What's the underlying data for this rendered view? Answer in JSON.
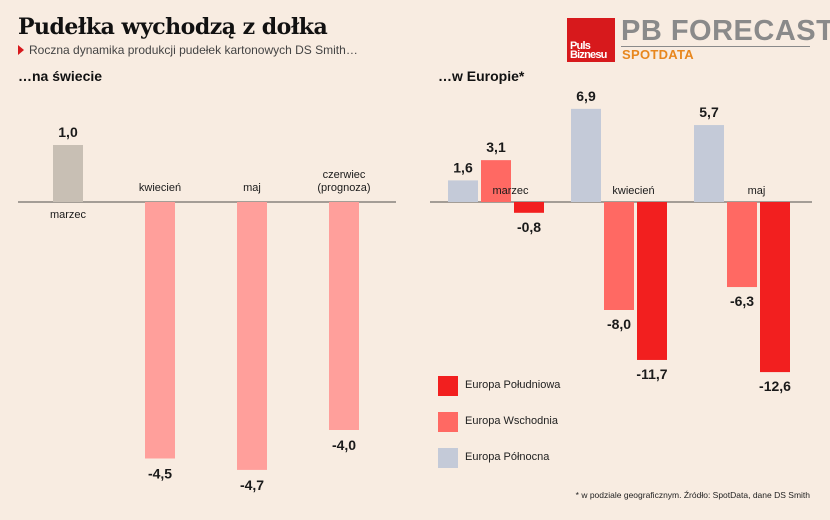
{
  "title": "Pudełka wychodzą z dołka",
  "subtitle": "Roczna dynamika produkcji pudełek kartonowych DS Smith…",
  "logo": {
    "box_line1": "Puls",
    "box_line2": "Biznesu",
    "brand": "PB FORECAST",
    "spot": "SPOTDATA"
  },
  "footnote": "* w podziale geograficznym. Źródło: SpotData, dane DS Smith",
  "colors": {
    "background": "#f8ece1",
    "world_positive": "#c8bfb4",
    "world_negative": "#ff9f9b",
    "south": "#f21f1f",
    "east": "#ff6963",
    "north": "#c4cad8"
  },
  "chart_data": [
    {
      "type": "bar",
      "title": "…na świecie",
      "categories": [
        "marzec",
        "kwiecień",
        "maj",
        "czerwiec\n(prognoza)"
      ],
      "values": [
        1.0,
        -4.5,
        -4.7,
        -4.0
      ],
      "value_labels": [
        "1,0",
        "-4,5",
        "-4,7",
        "-4,0"
      ]
    },
    {
      "type": "bar",
      "title": "…w Europie*",
      "categories": [
        "marzec",
        "kwiecień",
        "maj"
      ],
      "series": [
        {
          "name": "Europa Północna",
          "values": [
            1.6,
            6.9,
            5.7
          ],
          "value_labels": [
            "1,6",
            "6,9",
            "5,7"
          ]
        },
        {
          "name": "Europa Wschodnia",
          "values": [
            3.1,
            -8.0,
            -6.3
          ],
          "value_labels": [
            "3,1",
            "-8,0",
            "-6,3"
          ]
        },
        {
          "name": "Europa Południowa",
          "values": [
            -0.8,
            -11.7,
            -12.6
          ],
          "value_labels": [
            "-0,8",
            "-11,7",
            "-12,6"
          ]
        }
      ],
      "legend": [
        "Europa Południowa",
        "Europa Wschodnia",
        "Europa Północna"
      ]
    }
  ]
}
